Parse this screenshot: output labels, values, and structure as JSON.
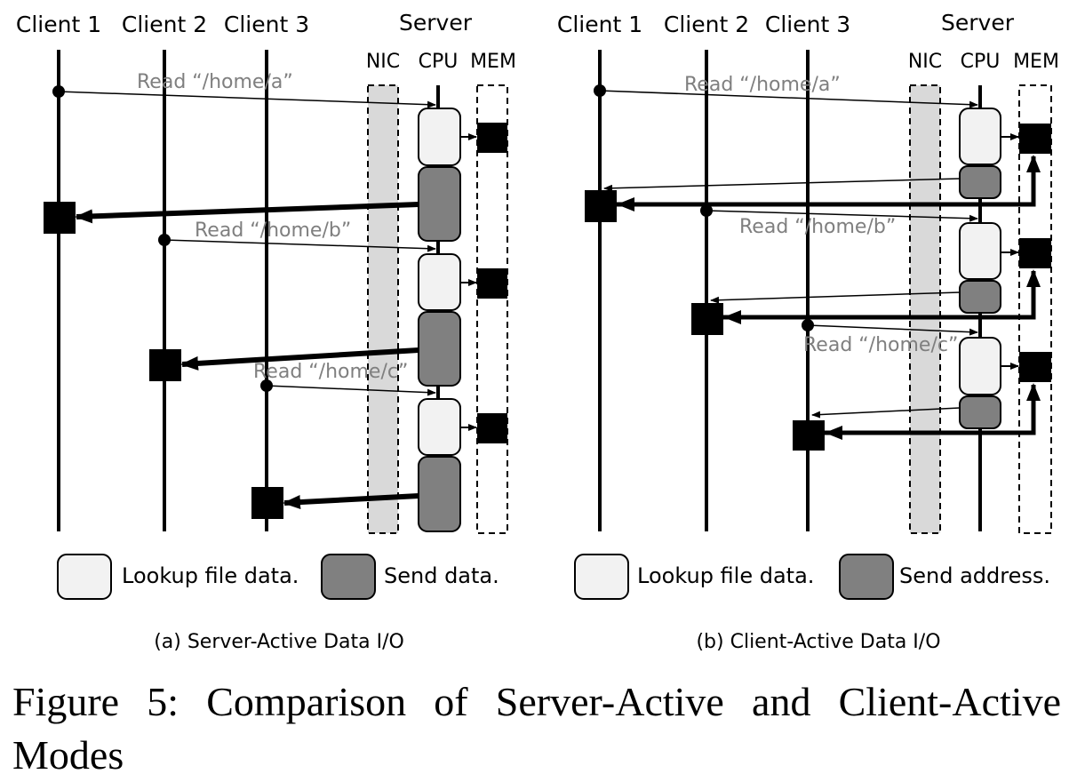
{
  "panels": [
    {
      "clients": [
        "Client 1",
        "Client 2",
        "Client 3"
      ],
      "server": "Server",
      "components": [
        "NIC",
        "CPU",
        "MEM"
      ],
      "requests": [
        "Read “/home/a”",
        "Read “/home/b”",
        "Read “/home/c”"
      ],
      "legend": [
        "Lookup file data.",
        "Send data."
      ],
      "subtitle": "(a) Server-Active Data I/O"
    },
    {
      "clients": [
        "Client 1",
        "Client 2",
        "Client 3"
      ],
      "server": "Server",
      "components": [
        "NIC",
        "CPU",
        "MEM"
      ],
      "requests": [
        "Read “/home/a”",
        "Read “/home/b”",
        "Read “/home/c”"
      ],
      "legend": [
        "Lookup file data.",
        "Send address."
      ],
      "subtitle": "(b) Client-Active Data I/O"
    }
  ],
  "caption": "Figure 5: Comparison of Server-Active and Client-Active Modes",
  "colors": {
    "lookup": "#f2f2f2",
    "send": "#808080",
    "nic": "#d9d9d9",
    "ink": "#000000",
    "request_text": "#7f7f7f"
  }
}
